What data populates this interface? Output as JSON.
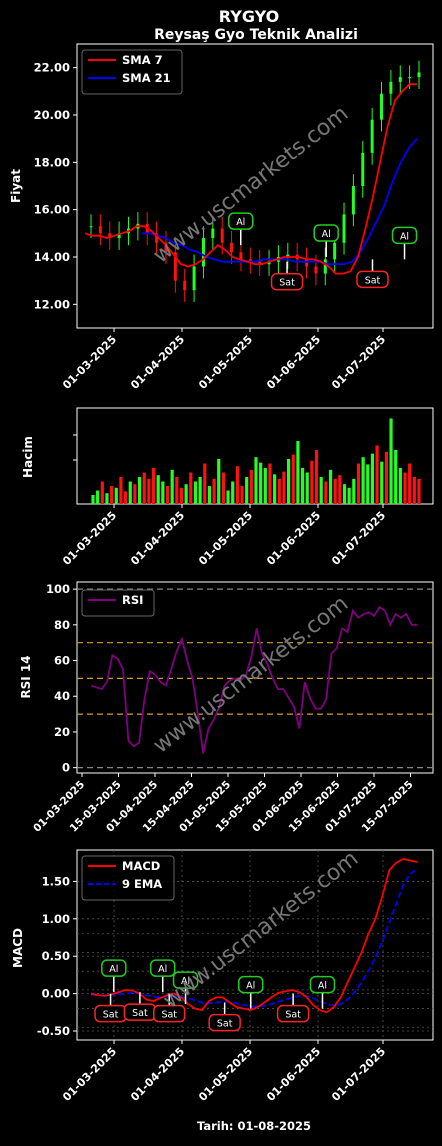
{
  "header": {
    "title": "RYGYO",
    "subtitle": "Reysaş Gyo Teknik Analizi",
    "watermark": "www.uscmarkets.com",
    "footer_date": "Tarih: 01-08-2025"
  },
  "colors": {
    "background": "#000000",
    "sma7": "#ff0000",
    "sma21": "#0000ff",
    "up": "#22ff22",
    "down": "#ff1111",
    "rsi": "#800080",
    "macd": "#ff0000",
    "ema": "#0000ff",
    "buy_box": "#22cc22",
    "sell_box": "#ff2222"
  },
  "chart_data": [
    {
      "type": "line",
      "id": "price",
      "ylabel": "Fiyat",
      "ylim": [
        11.0,
        23.0
      ],
      "yticks": [
        "12.00",
        "14.00",
        "16.00",
        "18.00",
        "20.00",
        "22.00"
      ],
      "xtick_labels": [
        "01-03-2025",
        "01-04-2025",
        "01-05-2025",
        "01-06-2025",
        "01-07-2025"
      ],
      "legend": [
        "SMA 7",
        "SMA 21"
      ],
      "legend_position": "top-left",
      "series": [
        {
          "name": "SMA 7",
          "values": [
            15.0,
            14.9,
            14.9,
            14.8,
            14.9,
            15.0,
            15.1,
            15.3,
            15.3,
            15.1,
            14.8,
            14.5,
            14.1,
            13.7,
            13.6,
            13.7,
            13.9,
            14.2,
            14.5,
            14.3,
            14.0,
            13.9,
            13.8,
            13.7,
            13.7,
            13.8,
            13.9,
            14.0,
            14.0,
            14.0,
            13.9,
            13.9,
            13.8,
            13.6,
            13.3,
            13.3,
            13.4,
            14.0,
            15.2,
            16.5,
            18.0,
            19.5,
            20.6,
            21.0,
            21.3,
            21.3
          ]
        },
        {
          "name": "SMA 21",
          "values": [
            null,
            null,
            null,
            null,
            null,
            null,
            null,
            15.0,
            15.0,
            14.9,
            14.8,
            14.6,
            14.5,
            14.3,
            14.2,
            14.0,
            13.9,
            13.8,
            13.8,
            13.8,
            13.8,
            13.8,
            13.9,
            13.9,
            13.9,
            13.9,
            13.8,
            13.8,
            13.8,
            13.8,
            13.7,
            13.7,
            13.7,
            13.8,
            14.2,
            14.8,
            15.5,
            16.2,
            17.2,
            18.0,
            18.6,
            19.0
          ]
        }
      ],
      "candles": [
        15.3,
        15.0,
        14.8,
        15.0,
        15.2,
        15.4,
        15.0,
        14.6,
        14.2,
        13.0,
        12.6,
        13.6,
        14.8,
        15.2,
        14.6,
        14.2,
        13.9,
        13.8,
        13.7,
        13.8,
        14.0,
        14.1,
        13.9,
        13.6,
        13.3,
        13.9,
        14.6,
        15.8,
        17.0,
        18.4,
        19.8,
        20.9,
        21.4,
        21.6,
        21.6,
        21.8
      ],
      "signals": [
        {
          "label": "Al",
          "kind": "buy",
          "x": 0.46,
          "y": 14.5
        },
        {
          "label": "Sat",
          "kind": "sell",
          "x": 0.59,
          "y": 13.8
        },
        {
          "label": "Al",
          "kind": "buy",
          "x": 0.7,
          "y": 14.0
        },
        {
          "label": "Sat",
          "kind": "sell",
          "x": 0.83,
          "y": 13.9
        },
        {
          "label": "Al",
          "kind": "buy",
          "x": 0.92,
          "y": 13.9
        }
      ]
    },
    {
      "type": "bar",
      "id": "volume",
      "ylabel": "Hacim",
      "xtick_labels": [
        "01-03-2025",
        "01-04-2025",
        "01-05-2025",
        "01-06-2025",
        "01-07-2025"
      ],
      "values": [
        0.1,
        0.15,
        0.25,
        0.12,
        0.2,
        0.18,
        0.3,
        0.14,
        0.25,
        0.22,
        0.3,
        0.35,
        0.28,
        0.4,
        0.32,
        0.25,
        0.2,
        0.38,
        0.3,
        0.18,
        0.22,
        0.35,
        0.25,
        0.3,
        0.45,
        0.2,
        0.28,
        0.5,
        0.35,
        0.15,
        0.25,
        0.42,
        0.2,
        0.3,
        0.38,
        0.52,
        0.46,
        0.4,
        0.45,
        0.33,
        0.28,
        0.36,
        0.5,
        0.55,
        0.7,
        0.4,
        0.35,
        0.48,
        0.6,
        0.3,
        0.25,
        0.38,
        0.28,
        0.32,
        0.22,
        0.18,
        0.28,
        0.45,
        0.52,
        0.44,
        0.56,
        0.65,
        0.47,
        0.58,
        0.95,
        0.6,
        0.4,
        0.35,
        0.45,
        0.3,
        0.28
      ],
      "directions": "ggrgrgrrgrgrrrggrgrrgrggrgrgrggrrgrgggrgrrgrgggrrgrgrrgggrgggrgrgggrr"
    },
    {
      "type": "line",
      "id": "rsi",
      "ylabel": "RSI 14",
      "ylim": [
        -3,
        104
      ],
      "yticks": [
        "0",
        "20",
        "40",
        "60",
        "80",
        "100"
      ],
      "xtick_labels": [
        "01-03-2025",
        "15-03-2025",
        "01-04-2025",
        "15-04-2025",
        "01-05-2025",
        "15-05-2025",
        "01-06-2025",
        "15-06-2025",
        "01-07-2025",
        "15-07-2025"
      ],
      "reference_lines": [
        0,
        30,
        50,
        70,
        100
      ],
      "legend": [
        "RSI"
      ],
      "legend_position": "top-left",
      "series": [
        {
          "name": "RSI",
          "values": [
            46,
            45,
            44,
            48,
            63,
            61,
            55,
            15,
            12,
            14,
            38,
            54,
            52,
            48,
            46,
            55,
            65,
            72,
            60,
            50,
            30,
            8,
            22,
            27,
            34,
            46,
            49,
            50,
            49,
            52,
            62,
            78,
            64,
            58,
            50,
            44,
            44,
            39,
            34,
            22,
            48,
            39,
            33,
            33,
            38,
            64,
            67,
            78,
            76,
            88,
            84,
            86,
            87,
            85,
            90,
            88,
            80,
            86,
            84,
            86,
            80,
            80
          ]
        }
      ]
    },
    {
      "type": "line",
      "id": "macd",
      "ylabel": "MACD",
      "ylim": [
        -0.62,
        1.92
      ],
      "yticks": [
        "-0.50",
        "0.00",
        "0.50",
        "1.00",
        "1.50"
      ],
      "xtick_labels": [
        "01-03-2025",
        "01-04-2025",
        "01-05-2025",
        "01-06-2025",
        "01-07-2025"
      ],
      "legend": [
        "MACD",
        "9 EMA"
      ],
      "legend_position": "top-left",
      "series": [
        {
          "name": "MACD",
          "values": [
            0.0,
            -0.02,
            -0.03,
            -0.01,
            0.02,
            0.05,
            0.04,
            0.0,
            -0.08,
            -0.1,
            -0.06,
            -0.02,
            0.0,
            -0.05,
            -0.14,
            -0.2,
            -0.22,
            -0.1,
            -0.05,
            -0.05,
            -0.12,
            -0.18,
            -0.2,
            -0.22,
            -0.18,
            -0.12,
            -0.05,
            0.01,
            0.03,
            0.05,
            0.02,
            -0.04,
            -0.15,
            -0.22,
            -0.25,
            -0.18,
            -0.05,
            0.15,
            0.35,
            0.55,
            0.8,
            1.0,
            1.3,
            1.65,
            1.75,
            1.8,
            1.78,
            1.76
          ]
        },
        {
          "name": "9 EMA",
          "values": [
            -0.02,
            -0.02,
            -0.02,
            -0.02,
            -0.01,
            0.0,
            0.01,
            0.0,
            -0.02,
            -0.04,
            -0.05,
            -0.04,
            -0.03,
            -0.04,
            -0.06,
            -0.09,
            -0.12,
            -0.13,
            -0.12,
            -0.11,
            -0.11,
            -0.13,
            -0.15,
            -0.17,
            -0.17,
            -0.16,
            -0.14,
            -0.11,
            -0.08,
            -0.05,
            -0.03,
            -0.03,
            -0.06,
            -0.1,
            -0.14,
            -0.16,
            -0.14,
            -0.08,
            0.02,
            0.15,
            0.3,
            0.48,
            0.7,
            0.95,
            1.2,
            1.45,
            1.6,
            1.66
          ]
        }
      ],
      "signals": [
        {
          "label": "Sat",
          "kind": "sell",
          "x": 0.06,
          "y": 0.0
        },
        {
          "label": "Al",
          "kind": "buy",
          "x": 0.07,
          "y": 0.02
        },
        {
          "label": "Sat",
          "kind": "sell",
          "x": 0.15,
          "y": 0.02
        },
        {
          "label": "Al",
          "kind": "buy",
          "x": 0.22,
          "y": 0.02
        },
        {
          "label": "Sat",
          "kind": "sell",
          "x": 0.24,
          "y": 0.0
        },
        {
          "label": "Al",
          "kind": "buy",
          "x": 0.29,
          "y": -0.14
        },
        {
          "label": "Sat",
          "kind": "sell",
          "x": 0.41,
          "y": -0.12
        },
        {
          "label": "Al",
          "kind": "buy",
          "x": 0.49,
          "y": -0.2
        },
        {
          "label": "Sat",
          "kind": "sell",
          "x": 0.62,
          "y": 0.0
        },
        {
          "label": "Al",
          "kind": "buy",
          "x": 0.71,
          "y": -0.2
        }
      ]
    }
  ]
}
